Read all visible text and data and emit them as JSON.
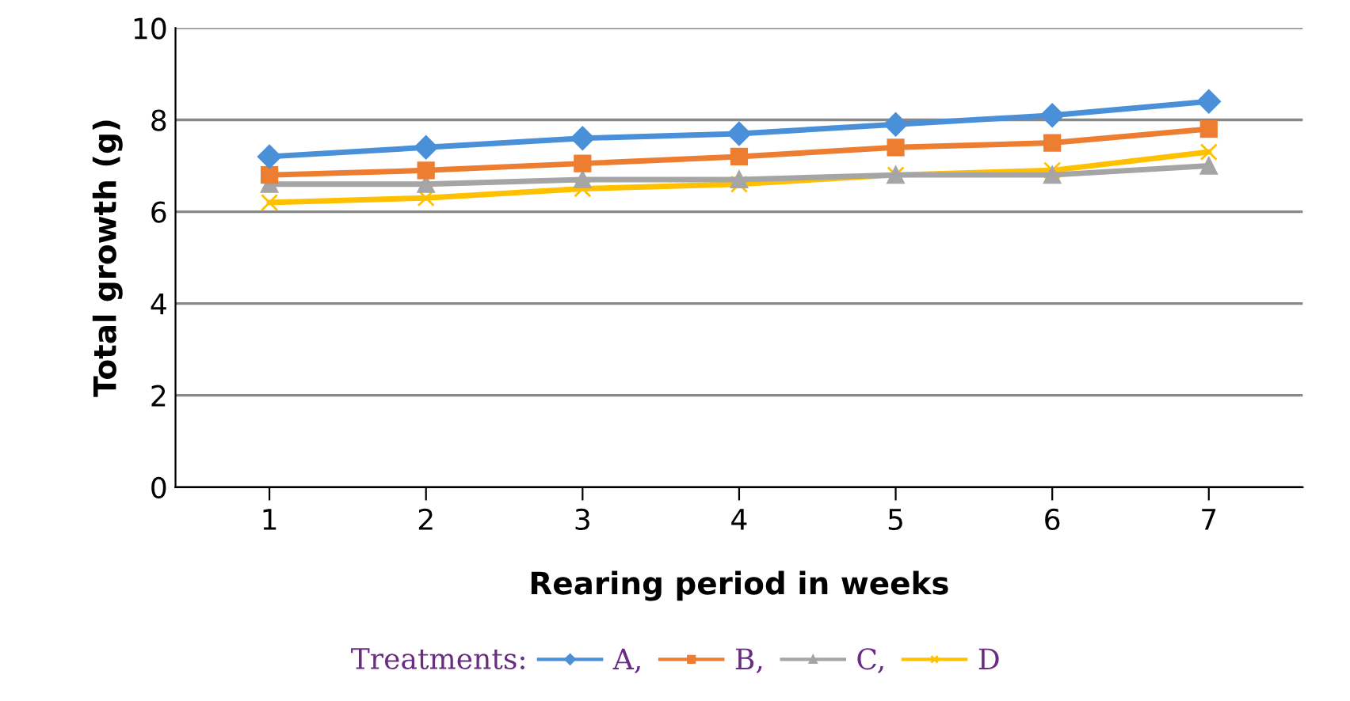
{
  "chart_data": {
    "type": "line",
    "xlabel": "Rearing period in weeks",
    "ylabel": "Total growth (g)",
    "legend_title": "Treatments:",
    "categories": [
      "1",
      "2",
      "3",
      "4",
      "5",
      "6",
      "7"
    ],
    "series": [
      {
        "name": "A,",
        "color": "#4a90d9",
        "marker": "diamond",
        "values": [
          7.2,
          7.4,
          7.6,
          7.7,
          7.9,
          8.1,
          8.4
        ]
      },
      {
        "name": "B,",
        "color": "#ed7d31",
        "marker": "square",
        "values": [
          6.8,
          6.9,
          7.05,
          7.2,
          7.4,
          7.5,
          7.8
        ]
      },
      {
        "name": "C,",
        "color": "#a5a5a5",
        "marker": "triangle",
        "values": [
          6.6,
          6.6,
          6.7,
          6.7,
          6.8,
          6.8,
          7.0
        ]
      },
      {
        "name": "D",
        "color": "#ffc000",
        "marker": "cross",
        "values": [
          6.2,
          6.3,
          6.5,
          6.6,
          6.8,
          6.9,
          7.3
        ]
      }
    ],
    "ylim": [
      0,
      10
    ],
    "yticks": [
      0,
      2,
      4,
      6,
      8,
      10
    ],
    "grid": "y",
    "legend": "bottom"
  }
}
